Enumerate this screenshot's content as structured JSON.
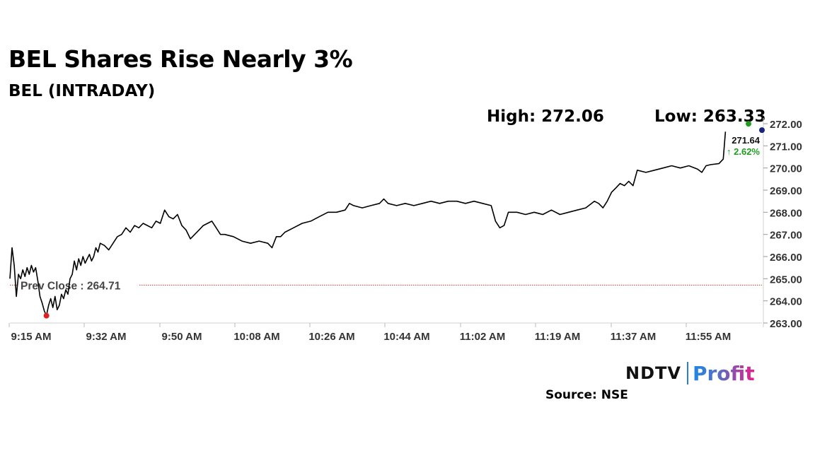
{
  "header": {
    "title": "BEL Shares Rise Nearly 3%",
    "subtitle": "BEL (INTRADAY)",
    "high_label": "High: 272.06",
    "low_label": "Low: 263.33"
  },
  "footer": {
    "brand_left": "NDTV",
    "brand_right": "Profit",
    "source": "Source: NSE"
  },
  "colors": {
    "line": "#000000",
    "prev_close_line": "#c0392b",
    "low_marker": "#e02020",
    "high_marker": "#1f9d1f",
    "current_marker": "#1a237e",
    "change_text": "#1f9d1f",
    "profit_gradient": [
      "#1e88e5",
      "#e91e8c"
    ]
  },
  "chart_data": {
    "type": "line",
    "ylim": [
      263.0,
      272.0
    ],
    "y_ticks": [
      "272.00",
      "271.00",
      "270.00",
      "269.00",
      "268.00",
      "267.00",
      "266.00",
      "265.00",
      "264.00",
      "263.00"
    ],
    "x_ticks": [
      "9:15 AM",
      "9:32 AM",
      "9:50 AM",
      "10:08 AM",
      "10:26 AM",
      "10:44 AM",
      "11:02 AM",
      "11:19 AM",
      "11:37 AM",
      "11:55 AM"
    ],
    "prev_close": 264.71,
    "prev_close_label": "Prev Close : 264.71",
    "high": 272.06,
    "low": 263.33,
    "last": {
      "value_label": "271.64",
      "change_label": "↑ 2.62%"
    },
    "series": [
      {
        "points": [
          [
            0,
            265.0
          ],
          [
            0.5,
            266.4
          ],
          [
            1.0,
            265.6
          ],
          [
            1.5,
            264.2
          ],
          [
            2.0,
            265.2
          ],
          [
            2.5,
            265.0
          ],
          [
            3.0,
            265.4
          ],
          [
            3.5,
            265.1
          ],
          [
            4.0,
            265.5
          ],
          [
            4.5,
            265.2
          ],
          [
            5.0,
            265.6
          ],
          [
            5.5,
            265.3
          ],
          [
            6.0,
            265.5
          ],
          [
            6.5,
            264.9
          ],
          [
            7.0,
            264.2
          ],
          [
            7.5,
            263.9
          ],
          [
            8.0,
            263.55
          ],
          [
            8.5,
            263.33
          ],
          [
            9.0,
            263.8
          ],
          [
            9.5,
            264.1
          ],
          [
            10.0,
            263.7
          ],
          [
            10.5,
            264.2
          ],
          [
            11.0,
            263.6
          ],
          [
            11.5,
            263.8
          ],
          [
            12.0,
            264.3
          ],
          [
            12.5,
            264.1
          ],
          [
            13.0,
            264.5
          ],
          [
            13.5,
            264.3
          ],
          [
            14.0,
            265.0
          ],
          [
            14.5,
            265.2
          ],
          [
            15.0,
            265.8
          ],
          [
            15.5,
            265.4
          ],
          [
            16.0,
            265.9
          ],
          [
            16.5,
            265.6
          ],
          [
            17.0,
            266.0
          ],
          [
            17.5,
            265.7
          ],
          [
            18.0,
            265.9
          ],
          [
            18.5,
            266.1
          ],
          [
            19.0,
            265.8
          ],
          [
            19.5,
            266.0
          ],
          [
            20.0,
            266.4
          ],
          [
            20.5,
            266.2
          ],
          [
            21.0,
            266.6
          ],
          [
            22.0,
            266.5
          ],
          [
            23.0,
            266.3
          ],
          [
            24.0,
            266.6
          ],
          [
            25.0,
            266.9
          ],
          [
            26.0,
            267.0
          ],
          [
            27.0,
            267.3
          ],
          [
            28.0,
            267.1
          ],
          [
            29.0,
            267.4
          ],
          [
            30.0,
            267.3
          ],
          [
            31.0,
            267.5
          ],
          [
            32.0,
            267.4
          ],
          [
            33.0,
            267.3
          ],
          [
            34.0,
            267.6
          ],
          [
            35.0,
            267.5
          ],
          [
            36.0,
            268.1
          ],
          [
            37.0,
            267.8
          ],
          [
            38.0,
            267.7
          ],
          [
            39.0,
            267.9
          ],
          [
            40.0,
            267.4
          ],
          [
            41.0,
            267.2
          ],
          [
            42.0,
            266.8
          ],
          [
            43.0,
            267.0
          ],
          [
            44.0,
            267.2
          ],
          [
            45.0,
            267.4
          ],
          [
            46.0,
            267.5
          ],
          [
            47.0,
            267.6
          ],
          [
            48.0,
            267.3
          ],
          [
            49.0,
            267.0
          ],
          [
            50.0,
            267.0
          ],
          [
            52.0,
            266.9
          ],
          [
            54.0,
            266.7
          ],
          [
            56.0,
            266.6
          ],
          [
            58.0,
            266.7
          ],
          [
            60.0,
            266.6
          ],
          [
            61.0,
            266.4
          ],
          [
            62.0,
            266.9
          ],
          [
            63.0,
            266.9
          ],
          [
            64.0,
            267.1
          ],
          [
            66.0,
            267.3
          ],
          [
            68.0,
            267.5
          ],
          [
            70.0,
            267.6
          ],
          [
            72.0,
            267.8
          ],
          [
            74.0,
            268.0
          ],
          [
            76.0,
            268.0
          ],
          [
            78.0,
            268.1
          ],
          [
            79.0,
            268.4
          ],
          [
            80.0,
            268.3
          ],
          [
            82.0,
            268.2
          ],
          [
            84.0,
            268.3
          ],
          [
            86.0,
            268.4
          ],
          [
            87.0,
            268.6
          ],
          [
            88.0,
            268.4
          ],
          [
            90.0,
            268.3
          ],
          [
            92.0,
            268.4
          ],
          [
            94.0,
            268.3
          ],
          [
            96.0,
            268.4
          ],
          [
            98.0,
            268.5
          ],
          [
            100.0,
            268.4
          ],
          [
            102.0,
            268.5
          ],
          [
            104.0,
            268.5
          ],
          [
            106.0,
            268.4
          ],
          [
            108.0,
            268.5
          ],
          [
            110.0,
            268.4
          ],
          [
            112.0,
            268.3
          ],
          [
            113.0,
            267.6
          ],
          [
            114.0,
            267.3
          ],
          [
            115.0,
            267.4
          ],
          [
            116.0,
            268.0
          ],
          [
            118.0,
            268.0
          ],
          [
            120.0,
            267.9
          ],
          [
            122.0,
            268.0
          ],
          [
            124.0,
            267.9
          ],
          [
            126.0,
            268.1
          ],
          [
            128.0,
            267.9
          ],
          [
            130.0,
            268.0
          ],
          [
            132.0,
            268.1
          ],
          [
            134.0,
            268.2
          ],
          [
            136.0,
            268.5
          ],
          [
            137.0,
            268.4
          ],
          [
            138.0,
            268.2
          ],
          [
            139.0,
            268.5
          ],
          [
            140.0,
            268.9
          ],
          [
            141.0,
            269.1
          ],
          [
            142.0,
            269.3
          ],
          [
            143.0,
            269.2
          ],
          [
            144.0,
            269.4
          ],
          [
            145.0,
            269.2
          ],
          [
            146.0,
            269.9
          ],
          [
            148.0,
            269.8
          ],
          [
            150.0,
            269.9
          ],
          [
            152.0,
            270.0
          ],
          [
            154.0,
            270.1
          ],
          [
            156.0,
            270.0
          ],
          [
            158.0,
            270.1
          ],
          [
            160.0,
            269.95
          ],
          [
            161.0,
            269.8
          ],
          [
            162.0,
            270.1
          ],
          [
            163.0,
            270.15
          ],
          [
            165.0,
            270.2
          ],
          [
            166.0,
            270.4
          ],
          [
            166.5,
            271.64
          ]
        ]
      }
    ],
    "x_max": 175
  }
}
